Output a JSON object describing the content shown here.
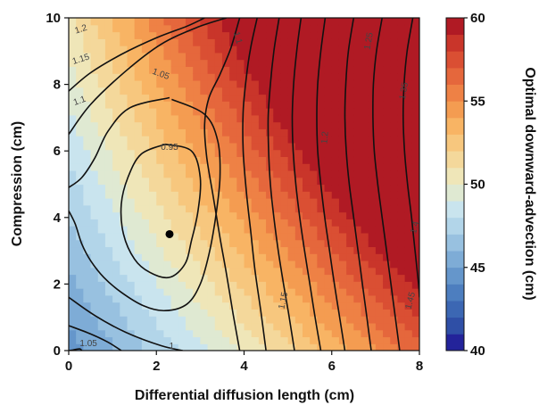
{
  "chart_data": {
    "type": "heatmap",
    "xlabel": "Differential diffusion length (cm)",
    "ylabel": "Compression (cm)",
    "colorbar_label": "Optimal downward-advection (cm)",
    "xlim": [
      0,
      8
    ],
    "ylim": [
      0,
      10
    ],
    "x_ticks": [
      "0",
      "2",
      "4",
      "6",
      "8"
    ],
    "y_ticks": [
      "0",
      "2",
      "4",
      "6",
      "8",
      "10"
    ],
    "colorbar": {
      "min": 40,
      "max": 60,
      "step": 1,
      "ticks": [
        "40",
        "45",
        "50",
        "55",
        "60"
      ],
      "colors": [
        "#23239a",
        "#2f4fa6",
        "#3c67b3",
        "#4d7ebf",
        "#6596cb",
        "#7eacd6",
        "#98c1e0",
        "#b2d5e9",
        "#c9e4ee",
        "#dfe9d2",
        "#efe6b8",
        "#f4d89b",
        "#f7c77e",
        "#f8b464",
        "#f49c51",
        "#ee8145",
        "#e5673c",
        "#da4f33",
        "#c9352a",
        "#b01a24"
      ]
    },
    "contour_labels": [
      "1.2",
      "1.15",
      "1.1",
      "1.05",
      "1.1",
      "1.25",
      "1.2",
      "1.35",
      "0.95",
      "1.4",
      "1.15",
      "1.45",
      "1.05",
      "1"
    ],
    "marker": {
      "x": 2.3,
      "y": 3.5
    }
  }
}
